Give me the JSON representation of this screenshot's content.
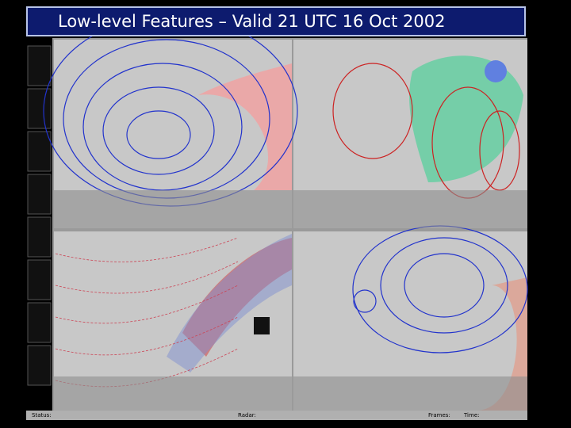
{
  "header": {
    "title": "Low-level Features – Valid 21 UTC 16 Oct 2002"
  },
  "status_bar": {
    "status": "Status:",
    "radar": "Radar:",
    "frames": "Frames:",
    "time": "Time:"
  }
}
